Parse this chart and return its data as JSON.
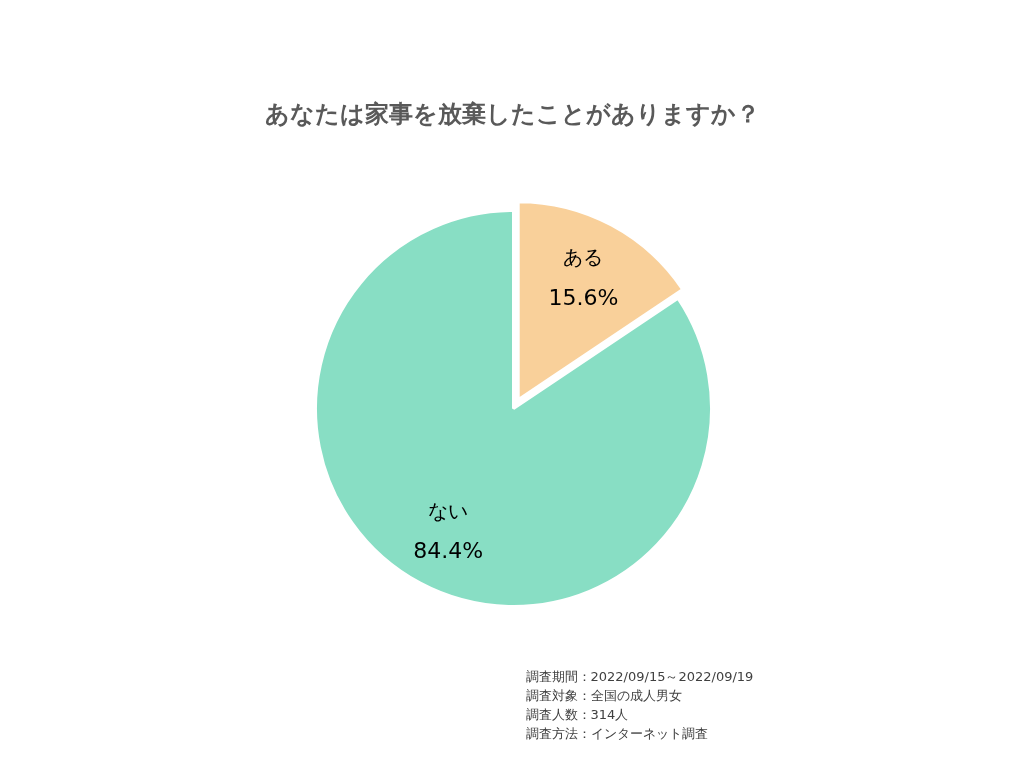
{
  "chart_data": {
    "type": "pie",
    "title": "あなたは家事を放棄したことがありますか？",
    "categories": [
      "ある",
      "ない"
    ],
    "values": [
      15.6,
      84.4
    ],
    "colors": [
      "#f9d09a",
      "#88dec4"
    ],
    "value_labels": [
      "15.6%",
      "84.4%"
    ],
    "legend": false,
    "annotations": [
      "調査期間：2022/09/15～2022/09/19",
      "調査対象：全国の成人男女",
      "調査人数：314人",
      "調査方法：インターネット調査"
    ]
  }
}
